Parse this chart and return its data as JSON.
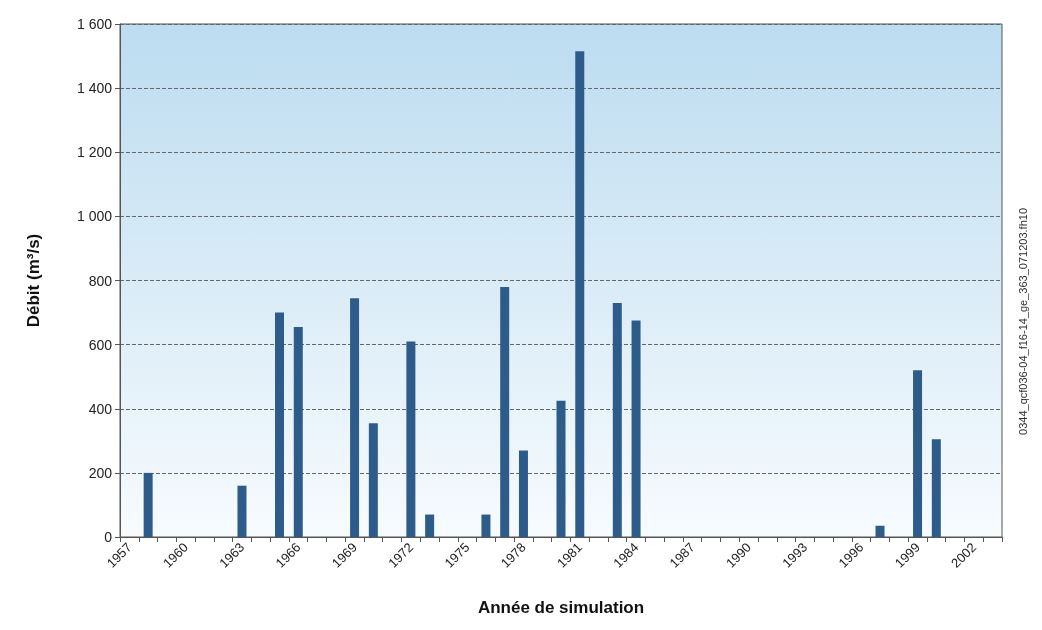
{
  "chart_data": {
    "type": "bar",
    "xlabel": "Année de simulation",
    "ylabel": "Débit (m³/s)",
    "categories": [
      "1957",
      null,
      null,
      "1960",
      null,
      null,
      "1963",
      null,
      null,
      "1966",
      null,
      null,
      "1969",
      null,
      null,
      "1972",
      null,
      null,
      "1975",
      null,
      null,
      "1978",
      null,
      null,
      "1981",
      null,
      null,
      "1984",
      null,
      null,
      "1987",
      null,
      null,
      "1990",
      null,
      null,
      "1993",
      null,
      null,
      "1996",
      null,
      null,
      "1999",
      null,
      null,
      "2002",
      null
    ],
    "values": [
      null,
      200,
      null,
      null,
      null,
      null,
      160,
      null,
      700,
      655,
      null,
      null,
      745,
      355,
      null,
      610,
      70,
      null,
      null,
      70,
      780,
      270,
      null,
      425,
      1515,
      null,
      730,
      675,
      null,
      null,
      null,
      null,
      null,
      null,
      null,
      null,
      null,
      null,
      null,
      null,
      35,
      null,
      520,
      305,
      null,
      null,
      null
    ],
    "color": "#2e5c8a",
    "ylim": [
      0,
      1600
    ],
    "yticks": [
      0,
      {
        "value": 200,
        "label": "200"
      },
      {
        "value": 400,
        "label": "400"
      },
      {
        "value": 600,
        "label": "600"
      },
      {
        "value": 800,
        "label": "800"
      },
      {
        "value": 1000,
        "label": "1 000"
      },
      {
        "value": 1200,
        "label": "1 200"
      },
      {
        "value": 1400,
        "label": "1 400"
      },
      {
        "value": 1600,
        "label": "1 600"
      }
    ],
    "grid": "y",
    "annotations": [
      "0344_qcf036-04_f16-14_ge_363_071203.fh10"
    ]
  }
}
